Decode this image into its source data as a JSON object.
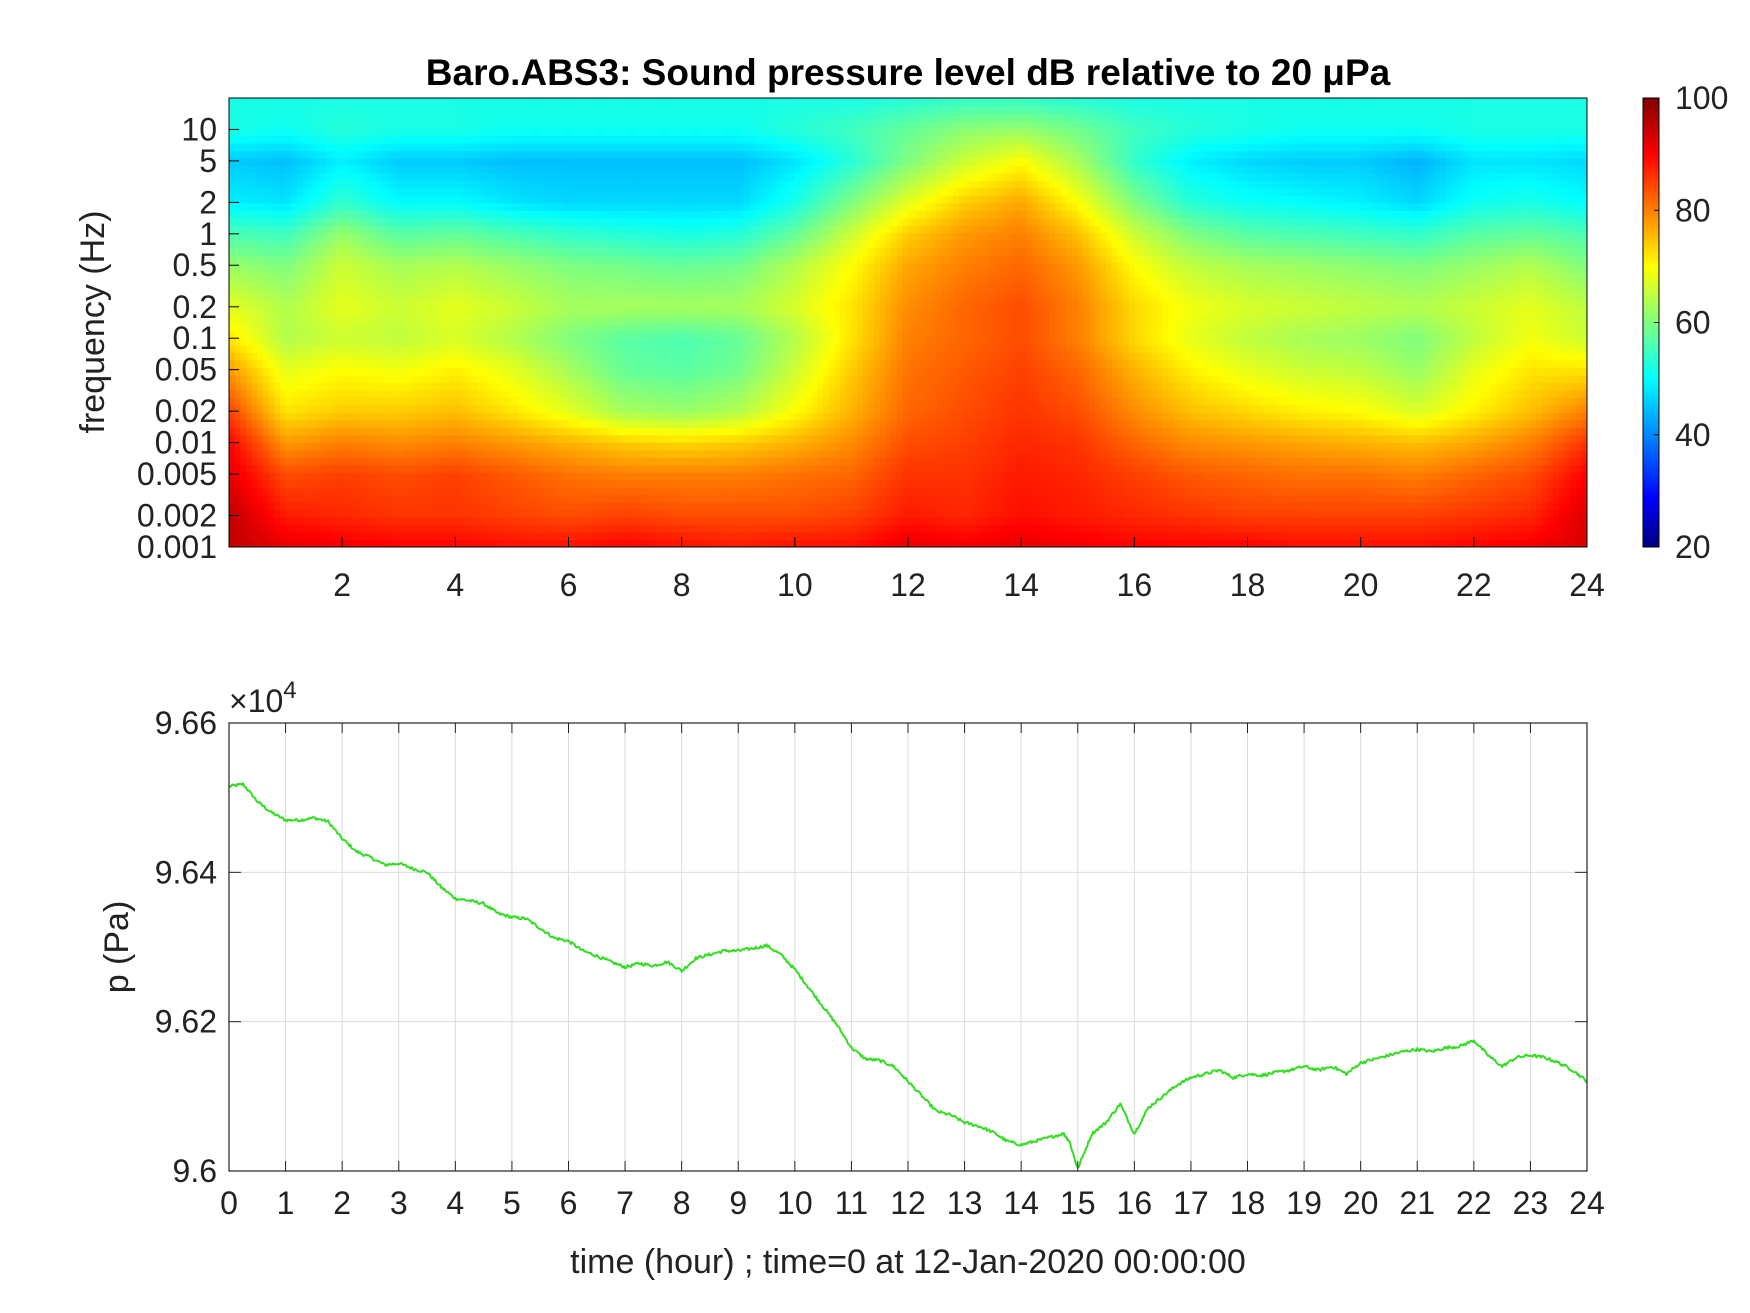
{
  "chart_data": [
    {
      "type": "heatmap",
      "title": "Baro.ABS3: Sound pressure level dB relative to 20 μPa",
      "ylabel": "frequency (Hz)",
      "xlabel": "",
      "xlim": [
        0,
        24
      ],
      "ylim": [
        0.001,
        20
      ],
      "y_scale": "log",
      "x_ticks": [
        2,
        4,
        6,
        8,
        10,
        12,
        14,
        16,
        18,
        20,
        22,
        24
      ],
      "x_tick_labels": [
        "2",
        "4",
        "6",
        "8",
        "10",
        "12",
        "14",
        "16",
        "18",
        "20",
        "22",
        "24"
      ],
      "y_ticks": [
        0.001,
        0.002,
        0.005,
        0.01,
        0.02,
        0.05,
        0.1,
        0.2,
        0.5,
        1,
        2,
        5,
        10
      ],
      "y_tick_labels": [
        "0.001",
        "0.002",
        "0.005",
        "0.01",
        "0.02",
        "0.05",
        "0.1",
        "0.2",
        "0.5",
        "1",
        "2",
        "5",
        "10"
      ],
      "colorbar": {
        "colormap": "jet",
        "clim": [
          20,
          100
        ],
        "ticks": [
          20,
          40,
          60,
          80,
          100
        ],
        "tick_labels": [
          "20",
          "40",
          "60",
          "80",
          "100"
        ],
        "placement": "right"
      },
      "x_hours": [
        0,
        1,
        2,
        3,
        4,
        5,
        6,
        7,
        8,
        9,
        10,
        11,
        12,
        13,
        14,
        15,
        16,
        17,
        18,
        19,
        20,
        21,
        22,
        23,
        24
      ],
      "band_freqs_hz": [
        0.001,
        0.002,
        0.005,
        0.01,
        0.02,
        0.05,
        0.1,
        0.2,
        0.5,
        1,
        2,
        5,
        10,
        20
      ],
      "level_db": [
        [
          95,
          92,
          91,
          90,
          90,
          89,
          89,
          90,
          89,
          88,
          89,
          89,
          92,
          91,
          92,
          91,
          90,
          90,
          90,
          89,
          89,
          89,
          90,
          91,
          93
        ],
        [
          95,
          88,
          87,
          86,
          86,
          85,
          84,
          85,
          84,
          84,
          84,
          85,
          88,
          87,
          89,
          88,
          87,
          86,
          85,
          85,
          85,
          85,
          86,
          87,
          93
        ],
        [
          92,
          84,
          85,
          84,
          85,
          83,
          81,
          80,
          80,
          80,
          81,
          82,
          86,
          86,
          88,
          87,
          85,
          83,
          82,
          81,
          81,
          80,
          82,
          84,
          90
        ],
        [
          90,
          78,
          80,
          79,
          80,
          78,
          76,
          74,
          73,
          74,
          76,
          79,
          84,
          85,
          87,
          86,
          82,
          79,
          78,
          77,
          76,
          75,
          77,
          80,
          86
        ],
        [
          85,
          72,
          74,
          74,
          75,
          72,
          68,
          63,
          62,
          64,
          70,
          76,
          82,
          84,
          86,
          84,
          79,
          75,
          73,
          71,
          70,
          67,
          71,
          75,
          80
        ],
        [
          78,
          68,
          70,
          69,
          71,
          68,
          63,
          58,
          57,
          59,
          66,
          74,
          81,
          83,
          85,
          82,
          76,
          71,
          68,
          66,
          65,
          62,
          68,
          72,
          72
        ],
        [
          72,
          64,
          66,
          65,
          67,
          64,
          60,
          57,
          56,
          58,
          64,
          72,
          80,
          82,
          84,
          80,
          73,
          68,
          65,
          63,
          62,
          60,
          65,
          69,
          66
        ],
        [
          68,
          64,
          68,
          66,
          68,
          66,
          63,
          63,
          63,
          63,
          67,
          72,
          79,
          82,
          84,
          80,
          73,
          69,
          67,
          66,
          65,
          64,
          66,
          68,
          65
        ],
        [
          62,
          60,
          66,
          63,
          64,
          62,
          60,
          59,
          58,
          59,
          64,
          70,
          77,
          80,
          82,
          78,
          70,
          65,
          63,
          62,
          61,
          60,
          62,
          64,
          60
        ],
        [
          56,
          55,
          62,
          57,
          58,
          56,
          54,
          53,
          52,
          53,
          58,
          66,
          74,
          78,
          80,
          75,
          66,
          60,
          57,
          56,
          55,
          54,
          57,
          58,
          56
        ],
        [
          49,
          48,
          54,
          50,
          50,
          48,
          47,
          47,
          47,
          47,
          52,
          60,
          68,
          74,
          77,
          70,
          60,
          53,
          51,
          50,
          49,
          47,
          51,
          52,
          50
        ],
        [
          46,
          45,
          49,
          46,
          46,
          45,
          45,
          45,
          45,
          45,
          48,
          53,
          60,
          66,
          70,
          63,
          54,
          49,
          47,
          46,
          46,
          44,
          48,
          48,
          47
        ],
        [
          52,
          51,
          53,
          52,
          52,
          51,
          51,
          51,
          51,
          51,
          53,
          55,
          58,
          61,
          62,
          59,
          55,
          53,
          52,
          51,
          51,
          51,
          52,
          52,
          52
        ],
        [
          52,
          52,
          52,
          52,
          52,
          52,
          52,
          52,
          52,
          52,
          52,
          52,
          53,
          54,
          54,
          53,
          52,
          52,
          52,
          52,
          52,
          52,
          52,
          52,
          52
        ]
      ]
    },
    {
      "type": "line",
      "title": "",
      "xlabel": "time (hour) ; time=0 at 12-Jan-2020 00:00:00",
      "ylabel": "p (Pa)",
      "xlim": [
        0,
        24
      ],
      "ylim": [
        96000,
        96600
      ],
      "y_exponent_label": "×10",
      "y_exponent": "4",
      "x_ticks": [
        0,
        1,
        2,
        3,
        4,
        5,
        6,
        7,
        8,
        9,
        10,
        11,
        12,
        13,
        14,
        15,
        16,
        17,
        18,
        19,
        20,
        21,
        22,
        23,
        24
      ],
      "x_tick_labels": [
        "0",
        "1",
        "2",
        "3",
        "4",
        "5",
        "6",
        "7",
        "8",
        "9",
        "10",
        "11",
        "12",
        "13",
        "14",
        "15",
        "16",
        "17",
        "18",
        "19",
        "20",
        "21",
        "22",
        "23",
        "24"
      ],
      "y_ticks": [
        96000,
        96200,
        96400,
        96600
      ],
      "y_tick_labels": [
        "9.6",
        "9.62",
        "9.64",
        "9.66"
      ],
      "grid": true,
      "line_color": "#33dd22",
      "x": [
        0,
        0.25,
        0.5,
        0.75,
        1,
        1.25,
        1.5,
        1.75,
        2,
        2.25,
        2.5,
        2.75,
        3,
        3.25,
        3.5,
        3.75,
        4,
        4.25,
        4.5,
        4.75,
        5,
        5.25,
        5.5,
        5.75,
        6,
        6.25,
        6.5,
        6.75,
        7,
        7.25,
        7.5,
        7.75,
        8,
        8.25,
        8.5,
        8.75,
        9,
        9.25,
        9.5,
        9.75,
        10,
        10.25,
        10.5,
        10.75,
        11,
        11.25,
        11.5,
        11.75,
        12,
        12.25,
        12.5,
        12.75,
        13,
        13.25,
        13.5,
        13.75,
        14,
        14.25,
        14.5,
        14.75,
        14.85,
        15,
        15.25,
        15.5,
        15.75,
        16,
        16.25,
        16.5,
        16.75,
        17,
        17.25,
        17.5,
        17.75,
        18,
        18.25,
        18.5,
        18.75,
        19,
        19.25,
        19.5,
        19.75,
        20,
        20.25,
        20.5,
        20.75,
        21,
        21.25,
        21.5,
        21.75,
        22,
        22.25,
        22.5,
        22.75,
        23,
        23.25,
        23.5,
        23.75,
        24
      ],
      "y": [
        96515,
        96518,
        96495,
        96480,
        96470,
        96470,
        96473,
        96468,
        96445,
        96428,
        96420,
        96410,
        96412,
        96405,
        96400,
        96380,
        96365,
        96362,
        96358,
        96345,
        96340,
        96338,
        96325,
        96312,
        96308,
        96295,
        96288,
        96280,
        96273,
        96278,
        96275,
        96280,
        96268,
        96285,
        96290,
        96295,
        96295,
        96298,
        96302,
        96290,
        96270,
        96245,
        96220,
        96195,
        96165,
        96150,
        96148,
        96140,
        96120,
        96100,
        96080,
        96075,
        96065,
        96060,
        96052,
        96040,
        96035,
        96040,
        96045,
        96050,
        96040,
        96003,
        96050,
        96065,
        96090,
        96050,
        96085,
        96100,
        96115,
        96125,
        96130,
        96135,
        96125,
        96130,
        96128,
        96132,
        96135,
        96140,
        96135,
        96140,
        96130,
        96145,
        96150,
        96155,
        96160,
        96163,
        96160,
        96165,
        96167,
        96175,
        96155,
        96140,
        96152,
        96155,
        96152,
        96145,
        96135,
        96120
      ]
    }
  ]
}
